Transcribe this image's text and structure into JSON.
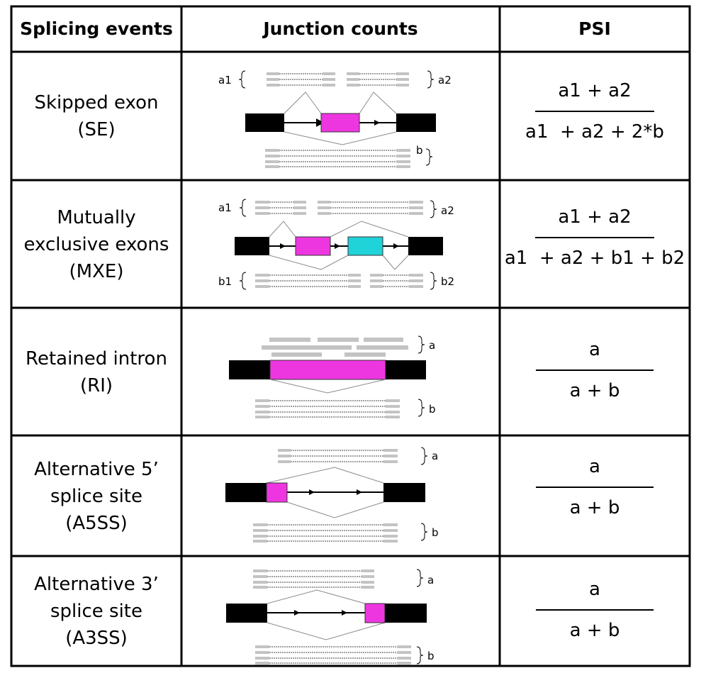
{
  "headers": {
    "events": "Splicing events",
    "junctions": "Junction counts",
    "psi": "PSI"
  },
  "rows": [
    {
      "event_lines": [
        "Skipped exon",
        "(SE)"
      ],
      "psi": {
        "numerator": "a1 + a2",
        "denominator": "a1  + a2 + 2*b"
      },
      "labels": {
        "a1": "a1",
        "a2": "a2",
        "b": "b"
      }
    },
    {
      "event_lines": [
        "Mutually",
        "exclusive exons",
        "(MXE)"
      ],
      "psi": {
        "numerator": "a1 + a2",
        "denominator": "a1  + a2 + b1 + b2"
      },
      "labels": {
        "a1": "a1",
        "a2": "a2",
        "b1": "b1",
        "b2": "b2"
      }
    },
    {
      "event_lines": [
        "Retained intron",
        "(RI)"
      ],
      "psi": {
        "numerator": "a",
        "denominator": "a + b"
      },
      "labels": {
        "a": "a",
        "b": "b"
      }
    },
    {
      "event_lines": [
        "Alternative 5’",
        "splice site",
        "(A5SS)"
      ],
      "psi": {
        "numerator": "a",
        "denominator": "a + b"
      },
      "labels": {
        "a": "a",
        "b": "b"
      }
    },
    {
      "event_lines": [
        "Alternative 3’",
        "splice site",
        "(A3SS)"
      ],
      "psi": {
        "numerator": "a",
        "denominator": "a + b"
      },
      "labels": {
        "a": "a",
        "b": "b"
      }
    }
  ],
  "colors": {
    "constitutive_exon": "#000000",
    "alternative_exon": "#ee36e0",
    "mutually_exclusive_exon": "#1fd3d8",
    "read": "#c3c3c3",
    "junction_path": "#8a8a8a"
  }
}
